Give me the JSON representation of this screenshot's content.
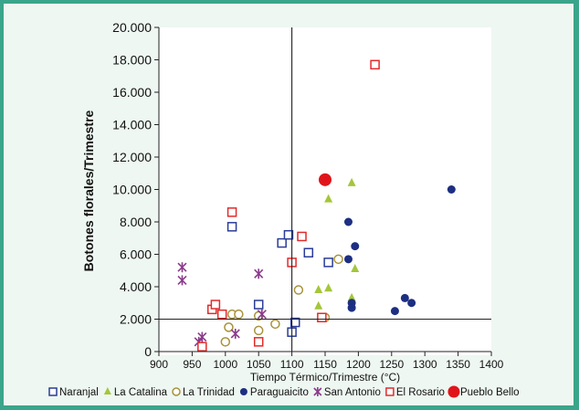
{
  "chart_data": {
    "type": "scatter",
    "xlabel": "Tiempo Térmico/Trimestre (°C)",
    "ylabel": "Botones florales/Trimestre",
    "xlim": [
      900,
      1400
    ],
    "ylim": [
      0,
      20000
    ],
    "x_ticks": [
      "900",
      "950",
      "1000",
      "1050",
      "1100",
      "1150",
      "1200",
      "1250",
      "1300",
      "1350",
      "1400"
    ],
    "y_ticks": [
      "0",
      "2.000",
      "4.000",
      "6.000",
      "8.000",
      "10.000",
      "12.000",
      "14.000",
      "16.000",
      "18.000",
      "20.000"
    ],
    "grid": false,
    "reference_lines": {
      "x": 1100,
      "y": 2000
    },
    "legend_position": "bottom",
    "series": [
      {
        "name": "Naranjal",
        "marker": "square-open",
        "color": "#2a3c98",
        "points": [
          [
            1010,
            7700
          ],
          [
            1050,
            2900
          ],
          [
            1085,
            6700
          ],
          [
            1095,
            7200
          ],
          [
            1100,
            1200
          ],
          [
            1105,
            1800
          ],
          [
            1125,
            6100
          ],
          [
            1155,
            5500
          ]
        ]
      },
      {
        "name": "La Catalina",
        "marker": "triangle",
        "color": "#a4c63a",
        "points": [
          [
            1140,
            3800
          ],
          [
            1140,
            2800
          ],
          [
            1155,
            3900
          ],
          [
            1155,
            9400
          ],
          [
            1190,
            10400
          ],
          [
            1190,
            3300
          ],
          [
            1195,
            5100
          ]
        ]
      },
      {
        "name": "La Trinidad",
        "marker": "circle-open",
        "color": "#a7923a",
        "points": [
          [
            1000,
            600
          ],
          [
            1005,
            1500
          ],
          [
            1010,
            2300
          ],
          [
            1020,
            2300
          ],
          [
            1050,
            1300
          ],
          [
            1050,
            2200
          ],
          [
            1075,
            1700
          ],
          [
            1110,
            3800
          ],
          [
            1150,
            2100
          ],
          [
            1170,
            5700
          ]
        ]
      },
      {
        "name": "Paraguaicito",
        "marker": "circle",
        "color": "#1d2f82",
        "points": [
          [
            1185,
            8000
          ],
          [
            1185,
            5700
          ],
          [
            1190,
            2700
          ],
          [
            1190,
            3000
          ],
          [
            1195,
            6500
          ],
          [
            1255,
            2500
          ],
          [
            1270,
            3300
          ],
          [
            1280,
            3000
          ],
          [
            1340,
            10000
          ]
        ]
      },
      {
        "name": "San Antonio",
        "marker": "asterisk",
        "color": "#8b3a8b",
        "points": [
          [
            935,
            5200
          ],
          [
            935,
            4400
          ],
          [
            960,
            600
          ],
          [
            965,
            900
          ],
          [
            1015,
            1100
          ],
          [
            1050,
            4800
          ],
          [
            1055,
            2300
          ]
        ]
      },
      {
        "name": "El Rosario",
        "marker": "square-open",
        "color": "#e22a2a",
        "points": [
          [
            965,
            300
          ],
          [
            980,
            2600
          ],
          [
            985,
            2900
          ],
          [
            995,
            2300
          ],
          [
            1010,
            8600
          ],
          [
            1050,
            600
          ],
          [
            1100,
            5500
          ],
          [
            1115,
            7100
          ],
          [
            1145,
            2100
          ],
          [
            1225,
            17700
          ]
        ]
      },
      {
        "name": "Pueblo Bello",
        "marker": "circle-large",
        "color": "#e0151b",
        "points": [
          [
            1150,
            10600
          ]
        ]
      }
    ]
  }
}
